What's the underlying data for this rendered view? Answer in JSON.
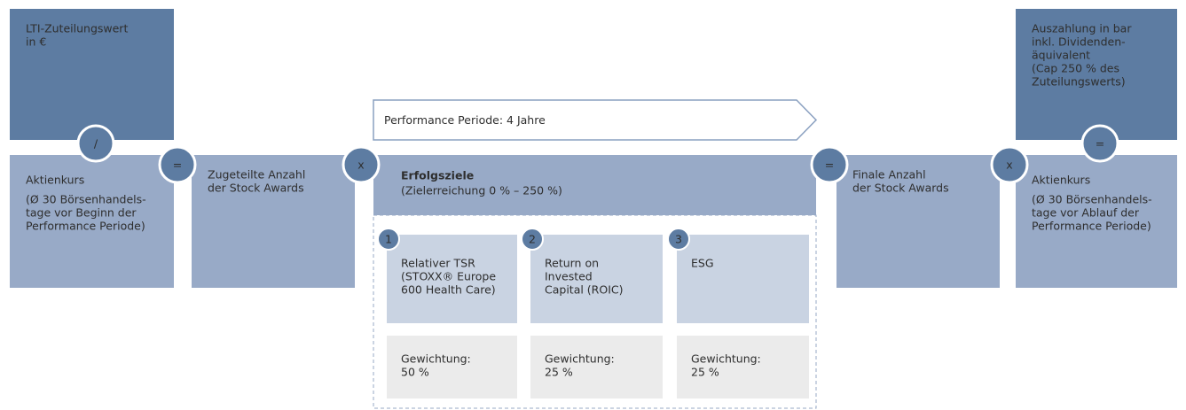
{
  "nodes": [
    {
      "lines": [
        "LTI-Zuteilungswert",
        "in €"
      ]
    },
    {
      "heading": "Aktienkurs",
      "lines": [
        "(Ø 30 Börsenhandels-",
        "tage vor Beginn der",
        "Performance Periode)"
      ]
    },
    {
      "lines": [
        "Zugeteilte Anzahl",
        "der Stock Awards"
      ]
    },
    {
      "lines": [
        "Performance Periode: 4 Jahre"
      ]
    },
    {
      "heading": "Erfolgsziele",
      "lines": [
        "(Zielerreichung 0 % – 250 %)"
      ]
    },
    {
      "lines": [
        "Finale Anzahl",
        "der Stock Awards"
      ]
    },
    {
      "lines": [
        "Auszahlung in bar",
        "inkl. Dividenden-",
        "äquivalent",
        "(Cap 250 % des",
        "Zuteilungswerts)"
      ]
    },
    {
      "heading": "Aktienkurs",
      "lines": [
        "(Ø 30 Börsenhandels-",
        "tage vor Ablauf der",
        "Performance Periode)"
      ]
    }
  ],
  "operators": [
    "/",
    "=",
    "x",
    "=",
    "x",
    "="
  ],
  "goals": [
    {
      "number": 1,
      "lines": [
        "Relativer TSR",
        "(STOXX® Europe",
        "600 Health Care)"
      ],
      "weight": [
        "Gewichtung:",
        "50 %"
      ]
    },
    {
      "number": 2,
      "lines": [
        "Return on",
        "Invested",
        "Capital (ROIC)"
      ],
      "weight": [
        "Gewichtung:",
        "25 %"
      ]
    },
    {
      "number": 3,
      "lines": [
        "ESG"
      ],
      "weight": [
        "Gewichtung:",
        "25 %"
      ]
    }
  ]
}
